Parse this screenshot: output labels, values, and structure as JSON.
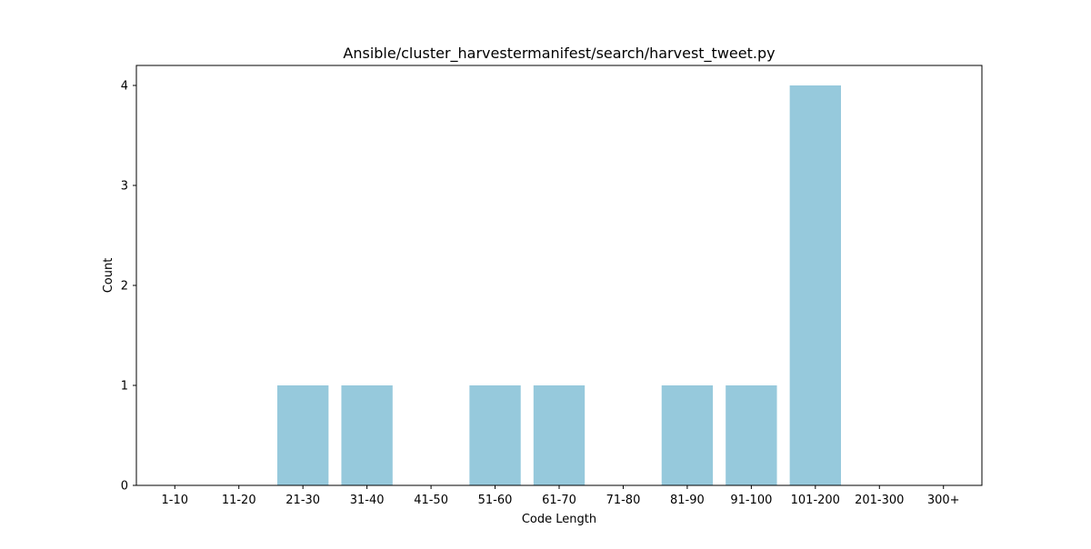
{
  "chart_data": {
    "type": "bar",
    "title": "Ansible/cluster_harvestermanifest/search/harvest_tweet.py",
    "xlabel": "Code Length",
    "ylabel": "Count",
    "categories": [
      "1-10",
      "11-20",
      "21-30",
      "31-40",
      "41-50",
      "51-60",
      "61-70",
      "71-80",
      "81-90",
      "91-100",
      "101-200",
      "201-300",
      "300+"
    ],
    "values": [
      0,
      0,
      1,
      1,
      0,
      1,
      1,
      0,
      1,
      1,
      4,
      0,
      0
    ],
    "ylim": [
      0,
      4.2
    ],
    "yticks": [
      0,
      1,
      2,
      3,
      4
    ],
    "bar_color": "#96c9dc",
    "grid": false,
    "legend": "none"
  }
}
